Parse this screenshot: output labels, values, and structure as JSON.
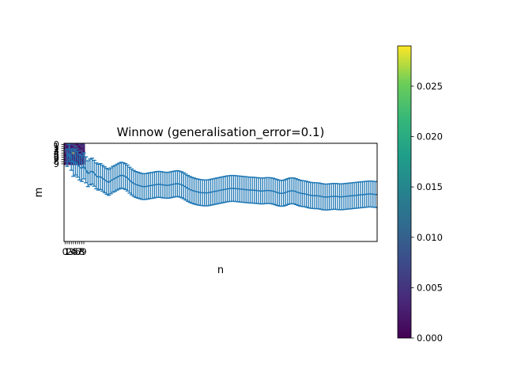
{
  "chart_data": {
    "type": "line",
    "title": "Winnow (generalisation_error=0.1)",
    "xlabel": "n",
    "ylabel": "m",
    "x_ticks": [
      "0",
      "1",
      "2",
      "3",
      "4",
      "5",
      "6",
      "7",
      "8",
      "9"
    ],
    "y_ticks": [
      "0",
      "1",
      "2",
      "3",
      "4",
      "5",
      "6",
      "7",
      "8",
      "9"
    ],
    "heatmap": {
      "rows": 10,
      "cols": 10,
      "vmin": 0.0,
      "vmax": 0.029,
      "values": [
        [
          0.002,
          0.006,
          0.001,
          0.004,
          0.008,
          0.003,
          0.001,
          0.007,
          0.002,
          0.005
        ],
        [
          0.004,
          0.001,
          0.007,
          0.002,
          0.003,
          0.009,
          0.004,
          0.001,
          0.006,
          0.003
        ],
        [
          0.001,
          0.005,
          0.003,
          0.001,
          0.006,
          0.002,
          0.008,
          0.003,
          0.001,
          0.004
        ],
        [
          0.007,
          0.002,
          0.004,
          0.009,
          0.001,
          0.005,
          0.002,
          0.004,
          0.007,
          0.001
        ],
        [
          0.003,
          0.008,
          0.001,
          0.005,
          0.029,
          0.002,
          0.006,
          0.001,
          0.003,
          0.006
        ],
        [
          0.001,
          0.003,
          0.006,
          0.002,
          0.004,
          0.007,
          0.001,
          0.005,
          0.002,
          0.008
        ],
        [
          0.005,
          0.001,
          0.002,
          0.007,
          0.001,
          0.003,
          0.004,
          0.002,
          0.006,
          0.002
        ],
        [
          0.002,
          0.004,
          0.008,
          0.001,
          0.003,
          0.001,
          0.006,
          0.003,
          0.001,
          0.004
        ],
        [
          0.006,
          0.002,
          0.001,
          0.004,
          0.007,
          0.002,
          0.001,
          0.005,
          0.003,
          0.001
        ],
        [
          0.001,
          0.007,
          0.003,
          0.002,
          0.001,
          0.005,
          0.003,
          0.001,
          0.004,
          0.006
        ]
      ]
    },
    "series": [
      {
        "x": [
          1,
          2,
          3,
          4,
          5,
          6,
          7,
          8,
          9,
          10,
          11,
          12,
          13,
          14,
          15,
          16,
          17,
          18,
          19,
          20,
          21,
          22,
          23,
          24,
          25,
          26,
          27,
          28,
          29,
          30,
          31,
          32,
          33,
          34,
          35,
          36,
          37,
          38,
          39,
          40,
          41,
          42,
          43,
          44,
          45,
          46,
          47,
          48,
          49,
          50,
          51,
          52,
          53,
          54,
          55,
          56,
          57,
          58,
          59,
          60,
          61,
          62,
          63,
          64,
          65,
          66,
          67,
          68,
          69,
          70,
          71,
          72,
          73,
          74,
          75,
          76,
          77,
          78,
          79,
          80,
          81,
          82,
          83,
          84,
          85,
          86,
          87,
          88,
          89,
          90,
          91,
          92,
          93,
          94,
          95,
          96,
          97,
          98,
          99,
          100,
          101,
          102,
          103,
          104,
          105,
          106,
          107,
          108,
          109,
          110,
          111,
          112,
          113,
          114,
          115,
          116,
          117,
          118,
          119,
          120,
          121,
          122,
          123,
          124,
          125,
          126,
          127,
          128,
          129,
          130,
          131,
          132,
          133,
          134,
          135,
          136,
          137,
          138,
          139,
          140,
          141,
          142,
          143,
          144,
          145,
          146,
          147,
          148,
          149,
          150
        ],
        "y": [
          6.2,
          4.0,
          7.0,
          8.8,
          8.2,
          9.2,
          10.5,
          11.2,
          10.0,
          11.8,
          13.6,
          12.8,
          12.4,
          13.4,
          14.6,
          15.2,
          14.9,
          15.7,
          16.4,
          17.1,
          17.6,
          16.9,
          16.2,
          15.8,
          15.2,
          14.7,
          14.3,
          14.5,
          14.9,
          15.6,
          16.6,
          17.4,
          18.1,
          18.6,
          18.9,
          19.2,
          19.5,
          19.6,
          19.5,
          19.3,
          19.1,
          19.0,
          18.8,
          18.6,
          18.5,
          18.6,
          18.8,
          18.9,
          19.0,
          18.9,
          18.7,
          18.5,
          18.3,
          18.2,
          18.4,
          18.7,
          19.2,
          19.8,
          20.4,
          20.9,
          21.3,
          21.6,
          21.9,
          22.1,
          22.3,
          22.4,
          22.5,
          22.5,
          22.4,
          22.2,
          22.0,
          21.8,
          21.6,
          21.4,
          21.2,
          21.0,
          20.8,
          20.6,
          20.5,
          20.4,
          20.4,
          20.5,
          20.6,
          20.7,
          20.8,
          20.9,
          21.0,
          21.1,
          21.2,
          21.2,
          21.3,
          21.4,
          21.5,
          21.6,
          21.6,
          21.5,
          21.4,
          21.4,
          21.5,
          21.7,
          22.0,
          22.3,
          22.6,
          22.7,
          22.6,
          22.3,
          21.9,
          21.6,
          21.5,
          21.6,
          21.9,
          22.3,
          22.6,
          22.8,
          22.9,
          23.1,
          23.4,
          23.6,
          23.7,
          23.8,
          23.8,
          23.9,
          24.1,
          24.3,
          24.4,
          24.4,
          24.3,
          24.2,
          24.1,
          24.1,
          24.2,
          24.3,
          24.3,
          24.2,
          24.1,
          24.0,
          23.9,
          23.8,
          23.7,
          23.6,
          23.5,
          23.4,
          23.3,
          23.2,
          23.1,
          23.0,
          23.0,
          23.1,
          23.2,
          23.3
        ],
        "yerr": [
          4,
          4,
          5,
          6,
          6,
          6,
          6,
          6,
          6,
          6,
          6,
          6,
          6,
          6,
          6,
          6,
          6,
          6,
          6,
          6,
          6,
          6,
          6,
          6,
          6,
          6,
          6,
          6,
          6,
          6,
          6,
          6,
          6,
          6,
          6,
          6,
          6,
          6,
          6,
          6,
          6,
          6,
          6,
          6,
          6,
          6,
          6,
          6,
          6,
          6,
          6,
          6,
          6,
          6,
          6,
          6,
          6,
          6,
          6,
          6,
          6,
          6,
          6,
          6,
          6,
          6,
          6,
          6,
          6,
          6,
          6,
          6,
          6,
          6,
          6,
          6,
          6,
          6,
          6,
          6,
          6,
          6,
          6,
          6,
          6,
          6,
          6,
          6,
          6,
          6,
          6,
          6,
          6,
          6,
          6,
          6,
          6,
          6,
          6,
          6,
          6,
          6,
          6,
          6,
          6,
          6,
          6,
          6,
          6,
          6,
          6,
          6,
          6,
          6,
          6,
          6,
          6,
          6,
          6,
          6,
          6,
          6,
          6,
          6,
          6,
          6,
          6,
          6,
          6,
          6,
          6,
          6,
          6,
          6,
          6,
          6,
          6,
          6,
          6,
          6,
          6,
          6,
          6,
          6,
          6,
          6,
          6,
          6,
          6,
          6
        ],
        "color": "#1f77b4"
      }
    ],
    "xlim": [
      -0.5,
      150
    ],
    "ylim": [
      -0.5,
      45
    ],
    "colorbar": {
      "ticks": [
        "0.000",
        "0.005",
        "0.010",
        "0.015",
        "0.020",
        "0.025"
      ],
      "tick_values": [
        0.0,
        0.005,
        0.01,
        0.015,
        0.02,
        0.025
      ],
      "vmin": 0.0,
      "vmax": 0.029,
      "colormap": "viridis"
    },
    "grid": false,
    "legend": "none"
  }
}
